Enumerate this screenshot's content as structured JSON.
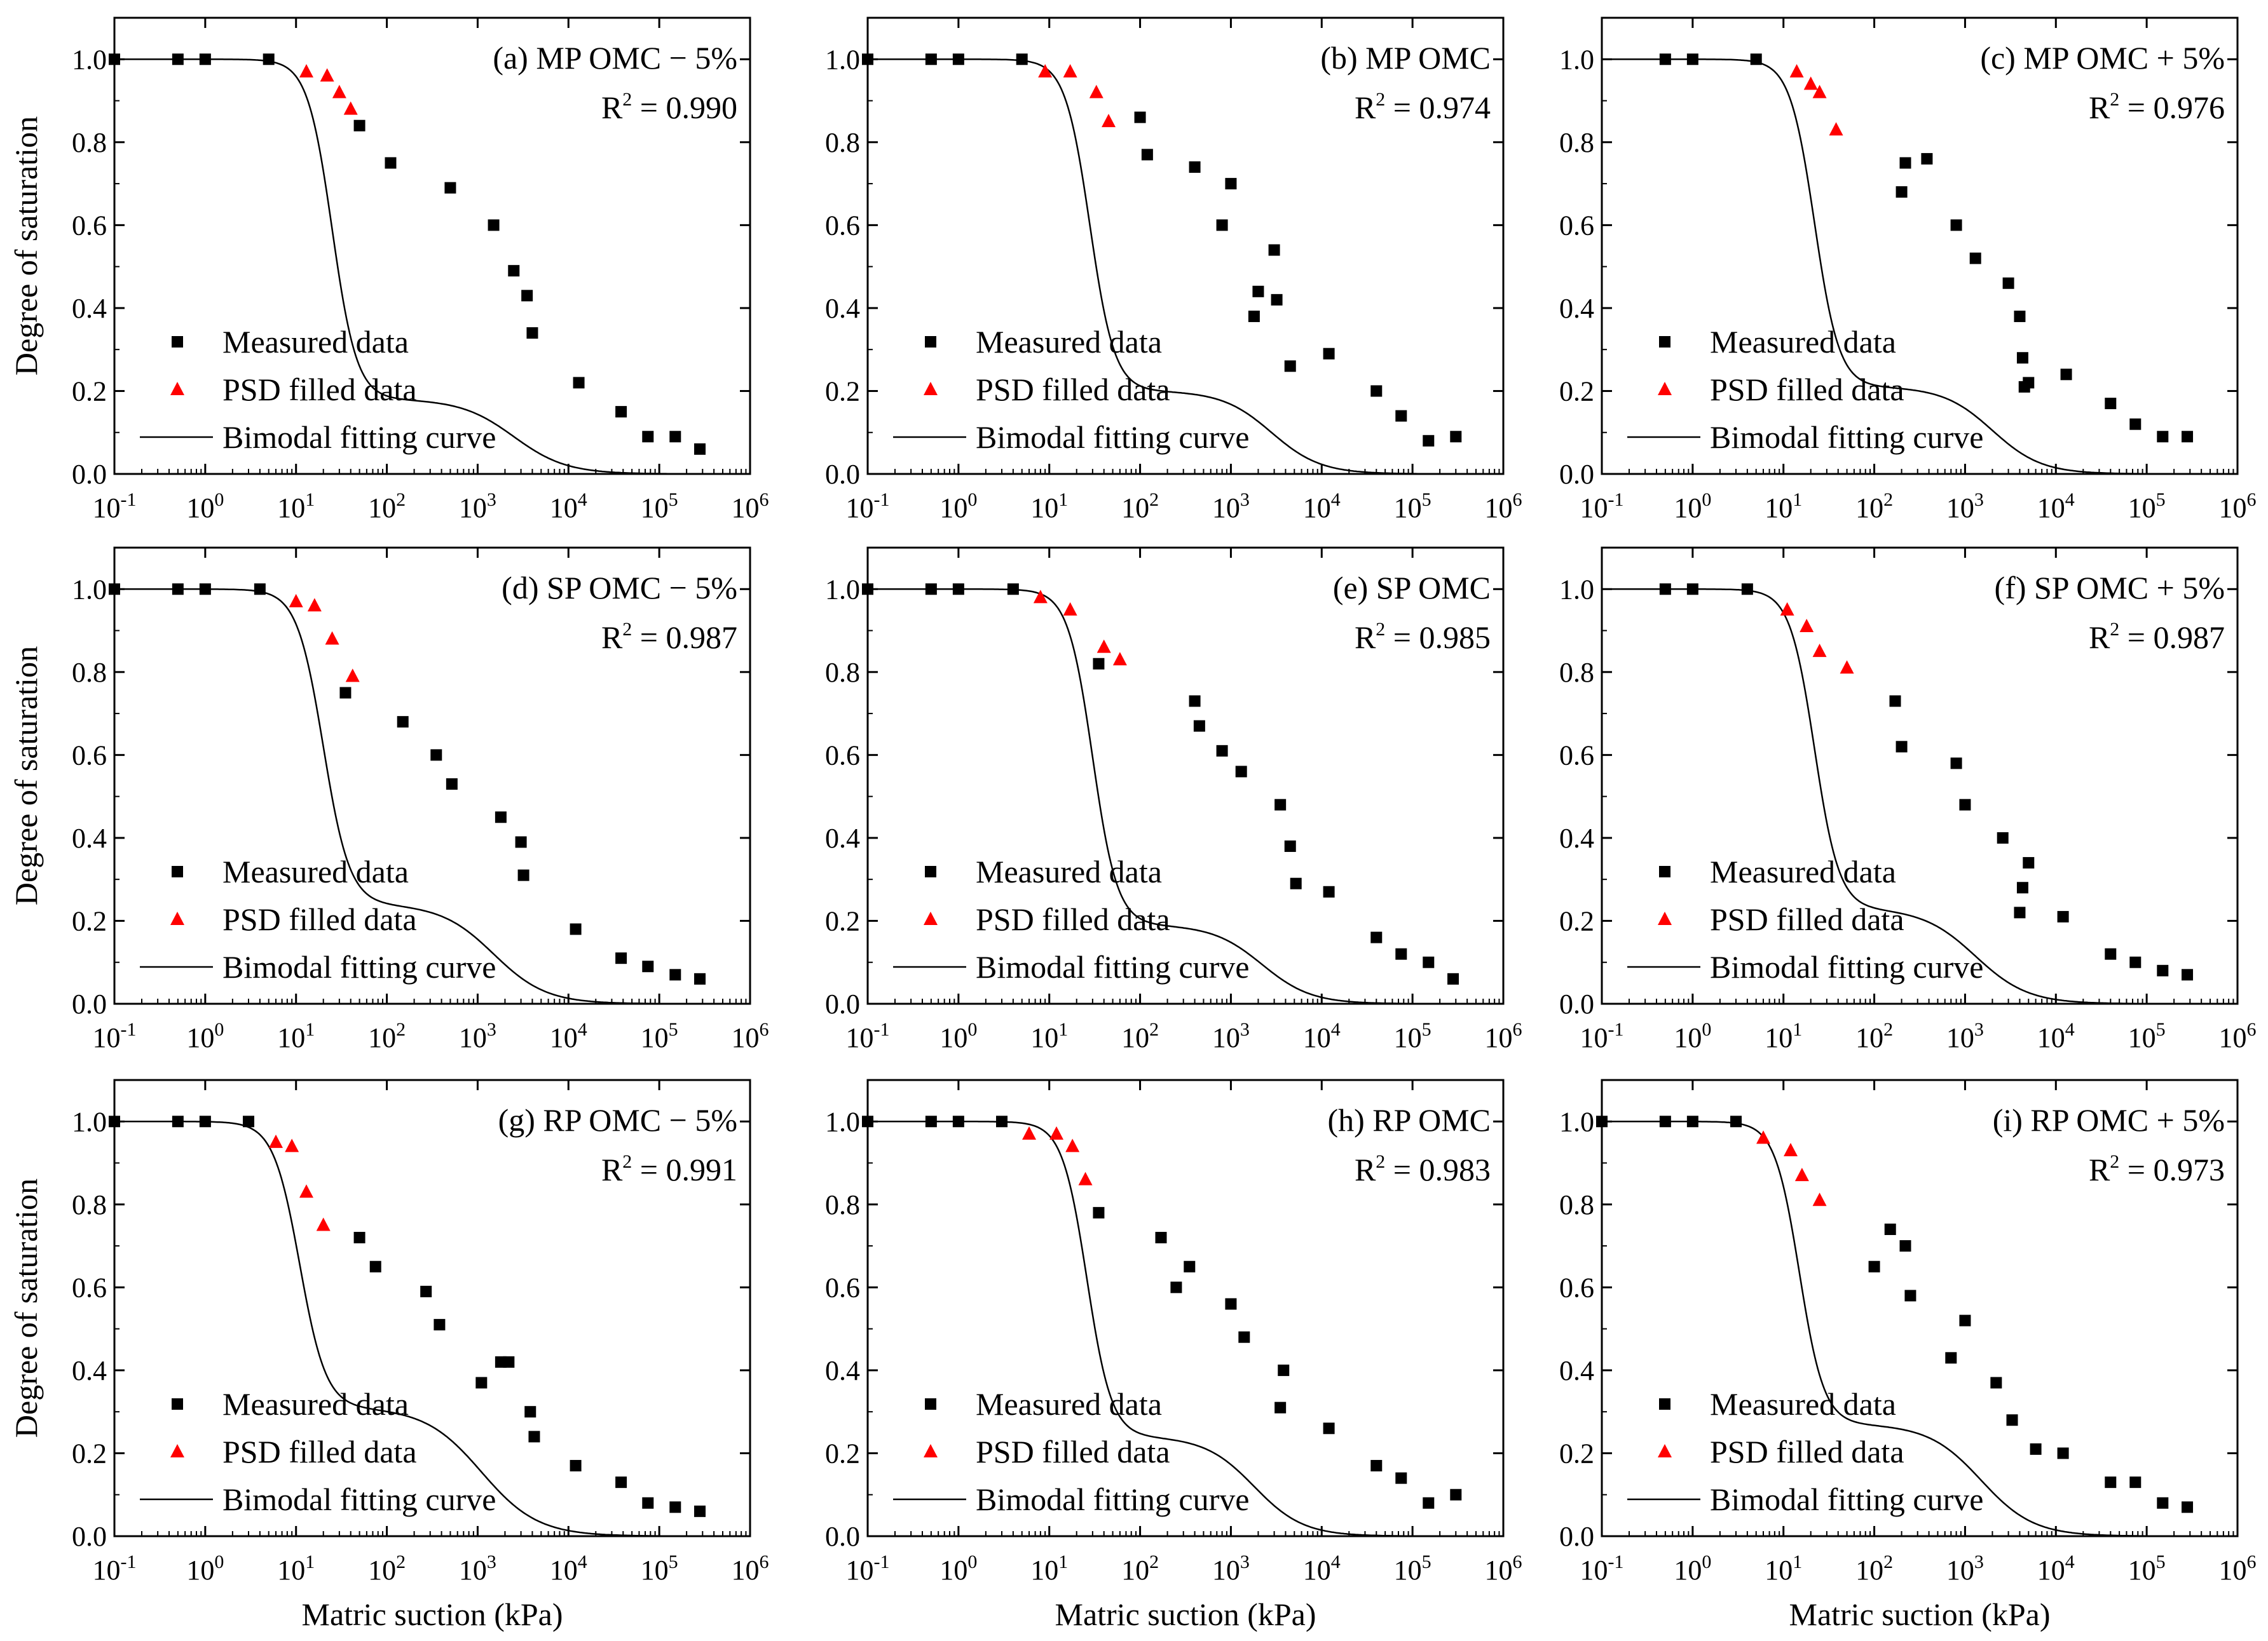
{
  "figure": {
    "ylabel": "Degree of saturation",
    "xlabel": "Matric suction (kPa)",
    "legend": {
      "measured": "Measured data",
      "psd": "PSD filled data",
      "curve": "Bimodal fitting curve"
    },
    "colors": {
      "measured": "#000000",
      "psd": "#ff0000",
      "curve": "#000000"
    },
    "x_tick_labels": [
      "10-1",
      "100",
      "101",
      "102",
      "103",
      "104",
      "105",
      "106"
    ],
    "y_tick_labels": [
      "0.0",
      "0.2",
      "0.4",
      "0.6",
      "0.8",
      "1.0"
    ]
  },
  "chart_data": [
    {
      "type": "scatter",
      "title": "(a) MP OMC − 5%",
      "r2": "R2 = 0.990",
      "xscale": "log",
      "xlim": [
        0.1,
        1000000
      ],
      "ylim": [
        0,
        1.1
      ],
      "series": [
        {
          "name": "Measured data",
          "x": [
            0.1,
            0.5,
            1,
            5,
            50,
            110,
            500,
            1500,
            2500,
            3500,
            4000,
            13000,
            38000,
            75000,
            150000,
            280000
          ],
          "y": [
            1.0,
            1.0,
            1.0,
            1.0,
            0.84,
            0.75,
            0.69,
            0.6,
            0.49,
            0.43,
            0.34,
            0.22,
            0.15,
            0.09,
            0.09,
            0.06
          ]
        },
        {
          "name": "PSD filled data",
          "x": [
            13,
            22,
            30,
            40
          ],
          "y": [
            0.97,
            0.96,
            0.92,
            0.88
          ]
        }
      ],
      "fit": {
        "name": "Bimodal fitting curve",
        "w": 0.18,
        "x1": 25,
        "n1": 3.2,
        "x2": 2500,
        "n2": 1.5
      }
    },
    {
      "type": "scatter",
      "title": "(b) MP OMC",
      "r2": "R2 = 0.974",
      "xscale": "log",
      "xlim": [
        0.1,
        1000000
      ],
      "ylim": [
        0,
        1.1
      ],
      "series": [
        {
          "name": "Measured data",
          "x": [
            0.1,
            0.5,
            1,
            5,
            100,
            120,
            400,
            800,
            1000,
            1800,
            2000,
            3000,
            3200,
            4500,
            12000,
            40000,
            75000,
            150000,
            300000
          ],
          "y": [
            1.0,
            1.0,
            1.0,
            1.0,
            0.86,
            0.77,
            0.74,
            0.6,
            0.7,
            0.38,
            0.44,
            0.54,
            0.42,
            0.26,
            0.29,
            0.2,
            0.14,
            0.08,
            0.09
          ]
        },
        {
          "name": "PSD filled data",
          "x": [
            9,
            17,
            33,
            45
          ],
          "y": [
            0.97,
            0.97,
            0.92,
            0.85
          ]
        }
      ],
      "fit": {
        "name": "Bimodal fitting curve",
        "w": 0.2,
        "x1": 28,
        "n1": 3.2,
        "x2": 2800,
        "n2": 1.6
      }
    },
    {
      "type": "scatter",
      "title": "(c) MP OMC + 5%",
      "r2": "R2 = 0.976",
      "xscale": "log",
      "xlim": [
        0.1,
        1000000
      ],
      "ylim": [
        0,
        1.1
      ],
      "series": [
        {
          "name": "Measured data",
          "x": [
            0.5,
            1,
            5,
            200,
            220,
            380,
            800,
            1300,
            3000,
            4000,
            4300,
            4500,
            5000,
            13000,
            40000,
            75000,
            150000,
            280000
          ],
          "y": [
            1.0,
            1.0,
            1.0,
            0.68,
            0.75,
            0.76,
            0.6,
            0.52,
            0.46,
            0.38,
            0.28,
            0.21,
            0.22,
            0.24,
            0.17,
            0.12,
            0.09,
            0.09
          ]
        },
        {
          "name": "PSD filled data",
          "x": [
            14,
            20,
            25,
            38
          ],
          "y": [
            0.97,
            0.94,
            0.92,
            0.83
          ]
        }
      ],
      "fit": {
        "name": "Bimodal fitting curve",
        "w": 0.21,
        "x1": 22,
        "n1": 3.2,
        "x2": 2000,
        "n2": 1.6
      }
    },
    {
      "type": "scatter",
      "title": "(d) SP OMC − 5%",
      "r2": "R2 = 0.987",
      "xscale": "log",
      "xlim": [
        0.1,
        1000000
      ],
      "ylim": [
        0,
        1.1
      ],
      "series": [
        {
          "name": "Measured data",
          "x": [
            0.1,
            0.5,
            1,
            4,
            35,
            150,
            350,
            520,
            1800,
            3000,
            3200,
            12000,
            38000,
            75000,
            150000,
            280000
          ],
          "y": [
            1.0,
            1.0,
            1.0,
            1.0,
            0.75,
            0.68,
            0.6,
            0.53,
            0.45,
            0.39,
            0.31,
            0.18,
            0.11,
            0.09,
            0.07,
            0.06
          ]
        },
        {
          "name": "PSD filled data",
          "x": [
            10,
            16,
            25,
            42
          ],
          "y": [
            0.97,
            0.96,
            0.88,
            0.79
          ]
        }
      ],
      "fit": {
        "name": "Bimodal fitting curve",
        "w": 0.24,
        "x1": 20,
        "n1": 3.0,
        "x2": 1500,
        "n2": 1.5
      }
    },
    {
      "type": "scatter",
      "title": "(e) SP OMC",
      "r2": "R2 = 0.985",
      "xscale": "log",
      "xlim": [
        0.1,
        1000000
      ],
      "ylim": [
        0,
        1.1
      ],
      "series": [
        {
          "name": "Measured data",
          "x": [
            0.1,
            0.5,
            1,
            4,
            35,
            400,
            450,
            800,
            1300,
            3500,
            4500,
            5200,
            12000,
            40000,
            75000,
            150000,
            280000
          ],
          "y": [
            1.0,
            1.0,
            1.0,
            1.0,
            0.82,
            0.73,
            0.67,
            0.61,
            0.56,
            0.48,
            0.38,
            0.29,
            0.27,
            0.16,
            0.12,
            0.1,
            0.06
          ]
        },
        {
          "name": "PSD filled data",
          "x": [
            8,
            17,
            40,
            60
          ],
          "y": [
            0.98,
            0.95,
            0.86,
            0.83
          ]
        }
      ],
      "fit": {
        "name": "Bimodal fitting curve",
        "w": 0.19,
        "x1": 30,
        "n1": 3.2,
        "x2": 2200,
        "n2": 1.6
      }
    },
    {
      "type": "scatter",
      "title": "(f) SP OMC + 5%",
      "r2": "R2 = 0.987",
      "xscale": "log",
      "xlim": [
        0.1,
        1000000
      ],
      "ylim": [
        0,
        1.1
      ],
      "series": [
        {
          "name": "Measured data",
          "x": [
            0.5,
            1,
            4,
            170,
            200,
            800,
            1000,
            2600,
            4000,
            4300,
            5000,
            12000,
            40000,
            75000,
            150000,
            280000
          ],
          "y": [
            1.0,
            1.0,
            1.0,
            0.73,
            0.62,
            0.58,
            0.48,
            0.4,
            0.22,
            0.28,
            0.34,
            0.21,
            0.12,
            0.1,
            0.08,
            0.07
          ]
        },
        {
          "name": "PSD filled data",
          "x": [
            11,
            18,
            25,
            50
          ],
          "y": [
            0.95,
            0.91,
            0.85,
            0.81
          ]
        }
      ],
      "fit": {
        "name": "Bimodal fitting curve",
        "w": 0.23,
        "x1": 22,
        "n1": 3.2,
        "x2": 1300,
        "n2": 1.5
      }
    },
    {
      "type": "scatter",
      "title": "(g) RP OMC − 5%",
      "r2": "R2 = 0.991",
      "xscale": "log",
      "xlim": [
        0.1,
        1000000
      ],
      "ylim": [
        0,
        1.1
      ],
      "series": [
        {
          "name": "Measured data",
          "x": [
            0.1,
            0.5,
            1,
            3,
            50,
            75,
            270,
            380,
            1100,
            1800,
            2200,
            3800,
            4200,
            12000,
            38000,
            75000,
            150000,
            280000
          ],
          "y": [
            1.0,
            1.0,
            1.0,
            1.0,
            0.72,
            0.65,
            0.59,
            0.51,
            0.37,
            0.42,
            0.42,
            0.3,
            0.24,
            0.17,
            0.13,
            0.08,
            0.07,
            0.06
          ]
        },
        {
          "name": "PSD filled data",
          "x": [
            6,
            9,
            13,
            20
          ],
          "y": [
            0.95,
            0.94,
            0.83,
            0.75
          ]
        }
      ],
      "fit": {
        "name": "Bimodal fitting curve",
        "w": 0.31,
        "x1": 11,
        "n1": 3.0,
        "x2": 1100,
        "n2": 1.4
      }
    },
    {
      "type": "scatter",
      "title": "(h) RP OMC",
      "r2": "R2 = 0.983",
      "xscale": "log",
      "xlim": [
        0.1,
        1000000
      ],
      "ylim": [
        0,
        1.1
      ],
      "series": [
        {
          "name": "Measured data",
          "x": [
            0.1,
            0.5,
            1,
            3,
            35,
            170,
            250,
            350,
            1000,
            1400,
            3500,
            3800,
            12000,
            40000,
            75000,
            150000,
            300000
          ],
          "y": [
            1.0,
            1.0,
            1.0,
            1.0,
            0.78,
            0.72,
            0.6,
            0.65,
            0.56,
            0.48,
            0.31,
            0.4,
            0.26,
            0.17,
            0.14,
            0.08,
            0.1
          ]
        },
        {
          "name": "PSD filled data",
          "x": [
            6,
            12,
            18,
            25
          ],
          "y": [
            0.97,
            0.97,
            0.94,
            0.86
          ]
        }
      ],
      "fit": {
        "name": "Bimodal fitting curve",
        "w": 0.24,
        "x1": 26,
        "n1": 3.2,
        "x2": 1800,
        "n2": 1.6
      }
    },
    {
      "type": "scatter",
      "title": "(i) RP OMC + 5%",
      "r2": "R2 = 0.973",
      "xscale": "log",
      "xlim": [
        0.1,
        1000000
      ],
      "ylim": [
        0,
        1.1
      ],
      "series": [
        {
          "name": "Measured data",
          "x": [
            0.1,
            0.5,
            1,
            3,
            100,
            150,
            220,
            250,
            700,
            1000,
            2200,
            3300,
            6000,
            12000,
            40000,
            75000,
            150000,
            280000
          ],
          "y": [
            1.0,
            1.0,
            1.0,
            1.0,
            0.65,
            0.74,
            0.7,
            0.58,
            0.43,
            0.52,
            0.37,
            0.28,
            0.21,
            0.2,
            0.13,
            0.13,
            0.08,
            0.07
          ]
        },
        {
          "name": "PSD filled data",
          "x": [
            6,
            12,
            16,
            25
          ],
          "y": [
            0.96,
            0.93,
            0.87,
            0.81
          ]
        }
      ],
      "fit": {
        "name": "Bimodal fitting curve",
        "w": 0.27,
        "x1": 15,
        "n1": 3.2,
        "x2": 1500,
        "n2": 1.5
      }
    }
  ]
}
